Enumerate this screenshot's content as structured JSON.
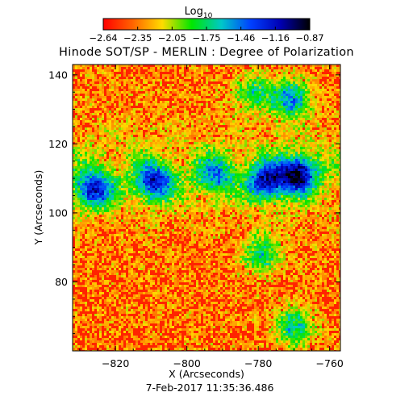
{
  "chart_data": {
    "type": "heatmap",
    "title": "Hinode SOT/SP - MERLIN : Degree of Polarization",
    "colorbar": {
      "title": "Log",
      "title_subscript": "10",
      "range": [
        -2.64,
        -0.87
      ],
      "tick_labels": [
        "−2.64",
        "−2.35",
        "−2.05",
        "−1.75",
        "−1.46",
        "−1.16",
        "−0.87"
      ],
      "colormap": [
        "#ff0000",
        "#ff6400",
        "#ffdc00",
        "#00e600",
        "#00c8c8",
        "#0040ff",
        "#0000b4",
        "#000000"
      ]
    },
    "xlabel": "X (Arcseconds)",
    "ylabel": "Y (Arcseconds)",
    "xlim": [
      -832,
      -757
    ],
    "ylim": [
      60,
      143
    ],
    "x_tick_labels": [
      "−820",
      "−800",
      "−780",
      "−760"
    ],
    "x_ticks": [
      -820,
      -800,
      -780,
      -760
    ],
    "y_tick_labels": [
      "80",
      "100",
      "120",
      "140"
    ],
    "y_ticks": [
      80,
      100,
      120,
      140
    ],
    "timestamp": "7-Feb-2017 11:35:36.486",
    "high_polarization_regions": [
      {
        "x": -826,
        "y": 107,
        "level": 0.75
      },
      {
        "x": -809,
        "y": 109,
        "level": 0.75
      },
      {
        "x": -792,
        "y": 111,
        "level": 0.5
      },
      {
        "x": -778,
        "y": 109,
        "level": 0.75
      },
      {
        "x": -769,
        "y": 111,
        "level": 0.95
      },
      {
        "x": -771,
        "y": 133,
        "level": 0.6
      },
      {
        "x": -781,
        "y": 135,
        "level": 0.4
      },
      {
        "x": -779,
        "y": 88,
        "level": 0.45
      },
      {
        "x": -770,
        "y": 67,
        "level": 0.5
      }
    ]
  }
}
